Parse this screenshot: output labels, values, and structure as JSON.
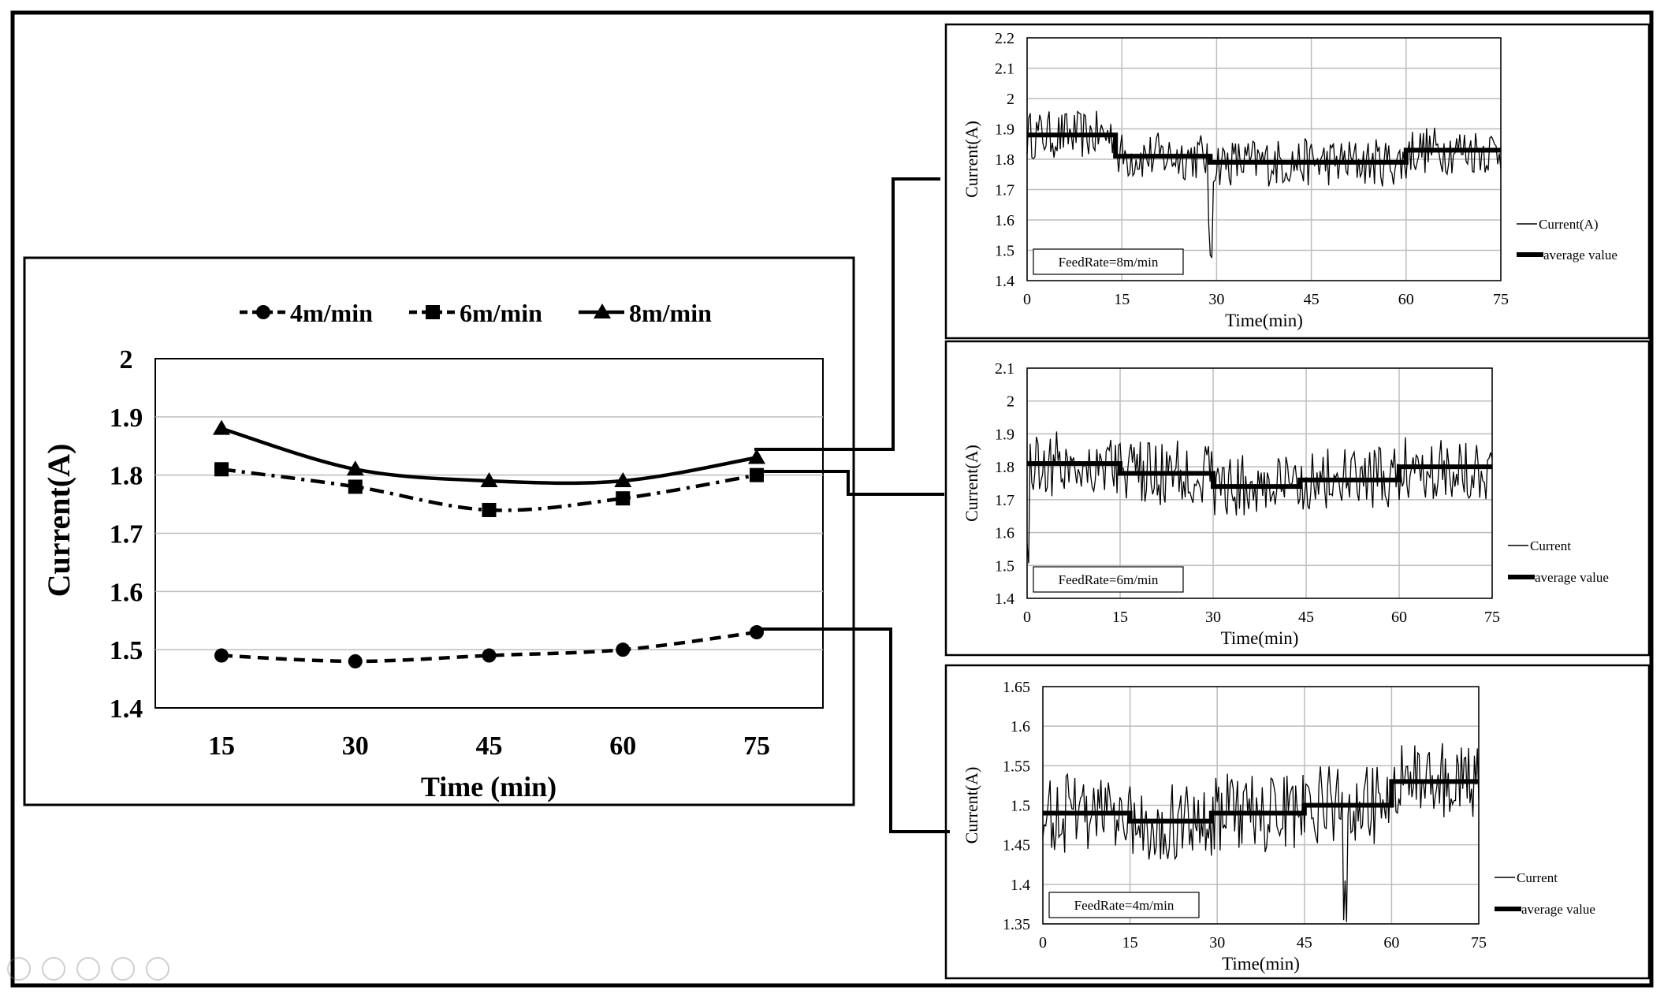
{
  "colors": {
    "ink": "#000000",
    "grid": "#bdbdbd",
    "paper": "#ffffff"
  },
  "toolbar_icons": [
    "play-icon",
    "pen-icon",
    "copy-icon",
    "zoom-icon",
    "more-icon"
  ],
  "chart_data": [
    {
      "id": "main",
      "type": "line",
      "title": "",
      "xlabel": "Time (min)",
      "ylabel": "Current(A)",
      "categories": [
        "15",
        "30",
        "45",
        "60",
        "75"
      ],
      "ylim": [
        1.4,
        2.0
      ],
      "yticks": [
        "1.4",
        "1.5",
        "1.6",
        "1.7",
        "1.8",
        "1.9",
        "2"
      ],
      "legend_position": "top",
      "series": [
        {
          "name": "4m/min",
          "marker": "circle",
          "dash": "dashed",
          "values": [
            1.49,
            1.48,
            1.49,
            1.5,
            1.53
          ]
        },
        {
          "name": "6m/min",
          "marker": "square",
          "dash": "dash-dot",
          "values": [
            1.81,
            1.78,
            1.74,
            1.76,
            1.8
          ]
        },
        {
          "name": "8m/min",
          "marker": "triangle",
          "dash": "solid",
          "values": [
            1.88,
            1.81,
            1.79,
            1.79,
            1.83
          ]
        }
      ]
    },
    {
      "id": "feed8",
      "type": "line",
      "xlabel": "Time(min)",
      "ylabel": "Current(A)",
      "xticks": [
        "0",
        "15",
        "30",
        "45",
        "60",
        "75"
      ],
      "yticks": [
        "1.4",
        "1.5",
        "1.6",
        "1.7",
        "1.8",
        "1.9",
        "2",
        "2.1",
        "2.2"
      ],
      "xlim": [
        0,
        75
      ],
      "ylim": [
        1.4,
        2.2
      ],
      "annotation": "FeedRate=8m/min",
      "legend": [
        "Current(A)",
        "average value"
      ],
      "average_segments": [
        [
          0,
          14,
          1.88
        ],
        [
          14,
          29,
          1.81
        ],
        [
          29,
          60,
          1.79
        ],
        [
          60,
          75,
          1.83
        ]
      ],
      "noise_amplitude": 0.08
    },
    {
      "id": "feed6",
      "type": "line",
      "xlabel": "Time(min)",
      "ylabel": "Current(A)",
      "xticks": [
        "0",
        "15",
        "30",
        "45",
        "60",
        "75"
      ],
      "yticks": [
        "1.4",
        "1.5",
        "1.6",
        "1.7",
        "1.8",
        "1.9",
        "2",
        "2.1"
      ],
      "xlim": [
        0,
        75
      ],
      "ylim": [
        1.4,
        2.1
      ],
      "annotation": "FeedRate=6m/min",
      "legend": [
        "Current",
        "average value"
      ],
      "average_segments": [
        [
          0,
          15,
          1.81
        ],
        [
          15,
          30,
          1.78
        ],
        [
          30,
          44,
          1.74
        ],
        [
          44,
          60,
          1.76
        ],
        [
          60,
          75,
          1.8
        ]
      ],
      "noise_amplitude": 0.1
    },
    {
      "id": "feed4",
      "type": "line",
      "xlabel": "Time(min)",
      "ylabel": "Current(A)",
      "xticks": [
        "0",
        "15",
        "30",
        "45",
        "60",
        "75"
      ],
      "yticks": [
        "1.35",
        "1.4",
        "1.45",
        "1.5",
        "1.55",
        "1.6",
        "1.65"
      ],
      "xlim": [
        0,
        75
      ],
      "ylim": [
        1.35,
        1.65
      ],
      "annotation": "FeedRate=4m/min",
      "legend": [
        "Current",
        "average value"
      ],
      "average_segments": [
        [
          0,
          15,
          1.49
        ],
        [
          15,
          29,
          1.48
        ],
        [
          29,
          45,
          1.49
        ],
        [
          45,
          60,
          1.5
        ],
        [
          60,
          75,
          1.53
        ]
      ],
      "noise_amplitude": 0.05
    }
  ]
}
